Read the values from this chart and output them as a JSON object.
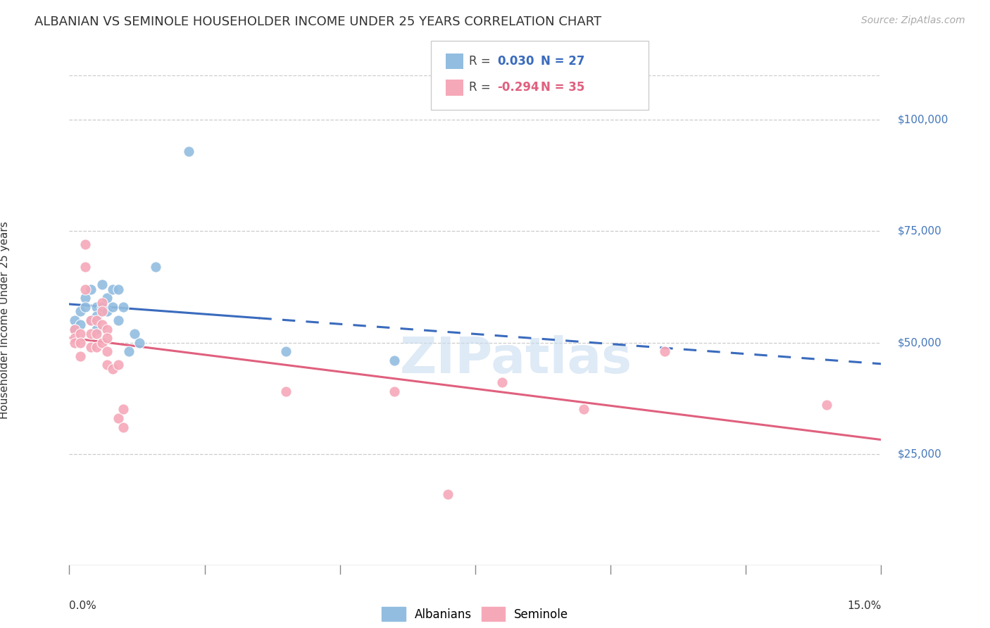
{
  "title": "ALBANIAN VS SEMINOLE HOUSEHOLDER INCOME UNDER 25 YEARS CORRELATION CHART",
  "source": "Source: ZipAtlas.com",
  "ylabel_label": "Householder Income Under 25 years",
  "legend_label1": "Albanians",
  "legend_label2": "Seminole",
  "r1": 0.03,
  "n1": 27,
  "r2": -0.294,
  "n2": 35,
  "blue_color": "#92bde0",
  "pink_color": "#f5a8b8",
  "trend_blue": "#3a6bbd",
  "trend_pink": "#e0607e",
  "albanians_x": [
    0.001,
    0.001,
    0.002,
    0.002,
    0.003,
    0.003,
    0.004,
    0.004,
    0.005,
    0.005,
    0.005,
    0.006,
    0.006,
    0.007,
    0.007,
    0.008,
    0.008,
    0.009,
    0.009,
    0.01,
    0.011,
    0.012,
    0.013,
    0.016,
    0.022,
    0.04,
    0.06
  ],
  "albanians_y": [
    55000,
    53000,
    57000,
    54000,
    60000,
    58000,
    62000,
    55000,
    58000,
    56000,
    53000,
    63000,
    58000,
    60000,
    57000,
    62000,
    58000,
    55000,
    62000,
    58000,
    48000,
    52000,
    50000,
    67000,
    93000,
    48000,
    46000
  ],
  "seminole_x": [
    0.001,
    0.001,
    0.001,
    0.002,
    0.002,
    0.002,
    0.003,
    0.003,
    0.003,
    0.004,
    0.004,
    0.004,
    0.005,
    0.005,
    0.005,
    0.006,
    0.006,
    0.006,
    0.006,
    0.007,
    0.007,
    0.007,
    0.007,
    0.008,
    0.009,
    0.009,
    0.01,
    0.01,
    0.04,
    0.06,
    0.07,
    0.08,
    0.095,
    0.11,
    0.14
  ],
  "seminole_y": [
    53000,
    51000,
    50000,
    52000,
    50000,
    47000,
    72000,
    67000,
    62000,
    55000,
    52000,
    49000,
    55000,
    52000,
    49000,
    59000,
    57000,
    54000,
    50000,
    53000,
    51000,
    48000,
    45000,
    44000,
    45000,
    33000,
    35000,
    31000,
    39000,
    39000,
    16000,
    41000,
    35000,
    48000,
    36000
  ],
  "xmin": 0.0,
  "xmax": 0.15,
  "ymin": 0,
  "ymax": 110000,
  "gridline_vals": [
    25000,
    50000,
    75000,
    100000
  ],
  "gridline_labels": [
    "$25,000",
    "$50,000",
    "$75,000",
    "$100,000"
  ],
  "xtick_positions": [
    0.0,
    0.025,
    0.05,
    0.075,
    0.1,
    0.125,
    0.15
  ],
  "xtick_labels": [
    "0.0%",
    "",
    "",
    "",
    "",
    "",
    "15.0%"
  ],
  "watermark_text": "ZIPatlas",
  "trend_split": 0.035
}
